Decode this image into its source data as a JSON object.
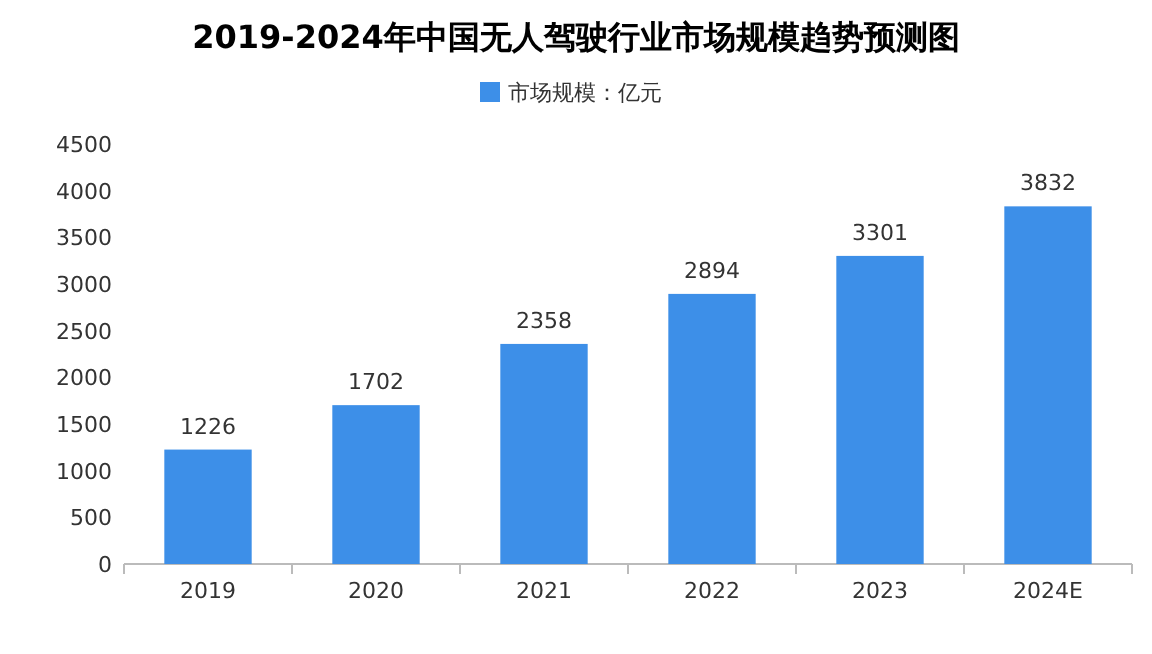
{
  "chart_data": {
    "type": "bar",
    "title": "2019-2024年中国无人驾驶行业市场规模趋势预测图",
    "categories": [
      "2019",
      "2020",
      "2021",
      "2022",
      "2023",
      "2024E"
    ],
    "series": [
      {
        "name": "市场规模：亿元",
        "color": "#3d8fe8",
        "values": [
          1226,
          1702,
          2358,
          2894,
          3301,
          3832
        ]
      }
    ],
    "ylim": [
      0,
      4500
    ],
    "yticks": [
      0,
      500,
      1000,
      1500,
      2000,
      2500,
      3000,
      3500,
      4000,
      4500
    ],
    "data_labels": true,
    "legend": "top"
  }
}
